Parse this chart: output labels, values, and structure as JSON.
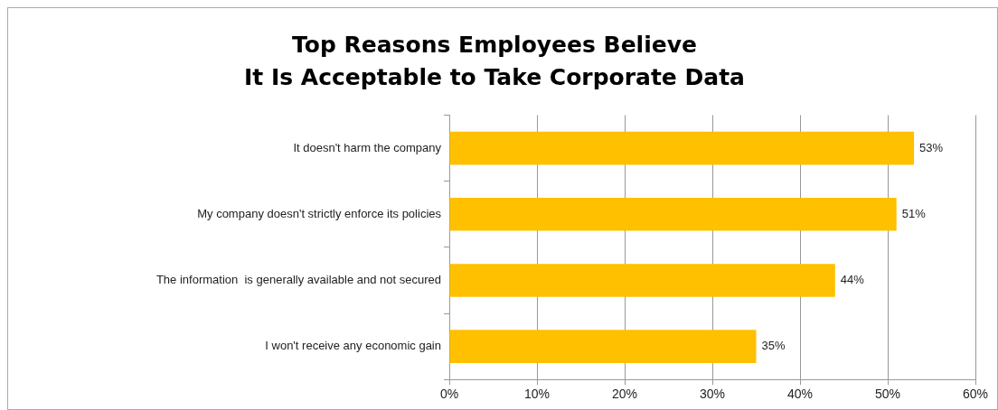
{
  "chart_data": {
    "type": "bar",
    "orientation": "horizontal",
    "title": "Top Reasons Employees Believe\nIt Is Acceptable to Take Corporate Data",
    "categories": [
      "It doesn't harm the company",
      "My company doesn't strictly enforce its policies",
      "The information  is generally available and not secured",
      "I won't receive any economic gain"
    ],
    "values": [
      53,
      51,
      44,
      35
    ],
    "value_labels": [
      "53%",
      "51%",
      "44%",
      "35%"
    ],
    "color": "#ffc000",
    "xlim": [
      0,
      60
    ],
    "xticks": [
      {
        "value": 0,
        "label": "0%"
      },
      {
        "value": 10,
        "label": "10%"
      },
      {
        "value": 20,
        "label": "20%"
      },
      {
        "value": 30,
        "label": "30%"
      },
      {
        "value": 40,
        "label": "40%"
      },
      {
        "value": 50,
        "label": "50%"
      },
      {
        "value": 60,
        "label": "60%"
      }
    ],
    "grid": "x",
    "legend": false
  }
}
